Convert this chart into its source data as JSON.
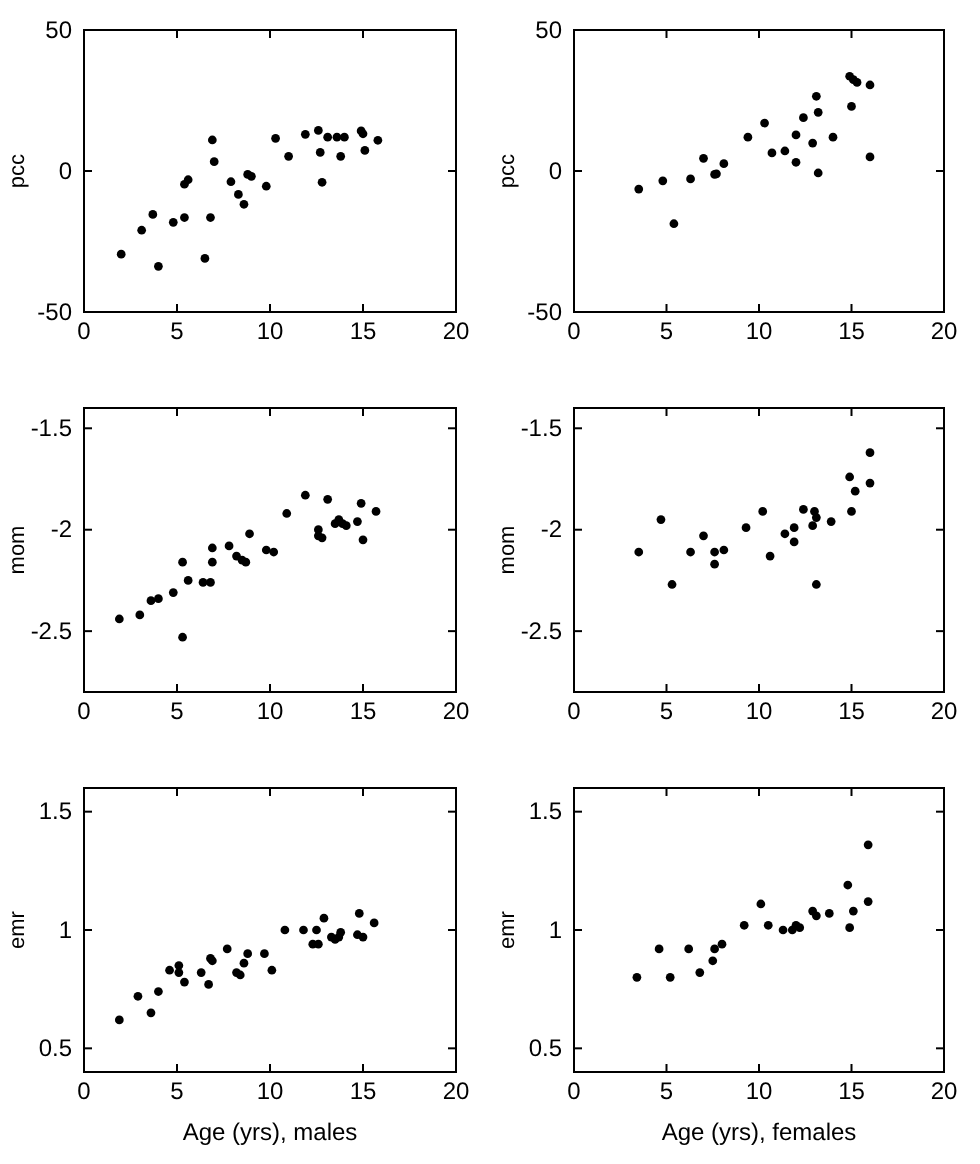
{
  "chart_data": [
    {
      "type": "scatter",
      "ylabel": "pcc",
      "xlim": [
        0,
        20
      ],
      "xticks": [
        0,
        5,
        10,
        15,
        20
      ],
      "ylim": [
        -50,
        50
      ],
      "yticks": [
        -50,
        0,
        50
      ],
      "marker": "circle",
      "color": "#000000",
      "x": [
        2.0,
        3.1,
        3.7,
        4.0,
        4.8,
        5.4,
        5.6,
        5.4,
        6.5,
        6.8,
        6.9,
        7.0,
        7.9,
        8.3,
        8.6,
        8.8,
        9.0,
        9.8,
        10.3,
        11.0,
        11.9,
        12.6,
        12.7,
        12.8,
        13.1,
        13.6,
        14.0,
        13.8,
        14.9,
        15.0,
        15.1,
        15.8
      ],
      "values": [
        -29.5,
        -21,
        -15.4,
        -33.8,
        -18.2,
        -4.7,
        -3.1,
        -16.5,
        -31,
        -16.5,
        11,
        3.3,
        -3.8,
        -8.3,
        -11.8,
        -1.2,
        -1.9,
        -5.4,
        11.6,
        5.2,
        13,
        14.4,
        6.6,
        -4,
        12,
        12,
        12,
        5.2,
        14.2,
        13.2,
        7.3,
        10.9
      ]
    },
    {
      "type": "scatter",
      "ylabel": "pcc",
      "xlim": [
        0,
        20
      ],
      "xticks": [
        0,
        5,
        10,
        15,
        20
      ],
      "ylim": [
        -50,
        50
      ],
      "yticks": [
        -50,
        0,
        50
      ],
      "marker": "circle",
      "color": "#000000",
      "x": [
        3.5,
        4.8,
        5.4,
        6.3,
        7.0,
        7.6,
        7.7,
        8.1,
        9.4,
        10.3,
        10.7,
        11.4,
        12.0,
        12.0,
        12.4,
        12.9,
        13.1,
        13.2,
        13.2,
        14.0,
        14.9,
        15.1,
        15.3,
        15.0,
        16.0,
        16.0
      ],
      "values": [
        -6.4,
        -3.5,
        -18.7,
        -2.8,
        4.5,
        -1.2,
        -1,
        2.6,
        12,
        17,
        6.4,
        7.1,
        12.8,
        3.1,
        18.9,
        9.9,
        26.5,
        20.8,
        -0.7,
        12,
        33.6,
        32.4,
        31.4,
        22.9,
        30.5,
        5
      ]
    },
    {
      "type": "scatter",
      "ylabel": "mom",
      "xlim": [
        0,
        20
      ],
      "xticks": [
        0,
        5,
        10,
        15,
        20
      ],
      "ylim": [
        -2.8,
        -1.4
      ],
      "yticks": [
        -2.5,
        -2,
        -1.5
      ],
      "marker": "circle",
      "color": "#000000",
      "x": [
        1.9,
        3.0,
        3.6,
        4.0,
        4.8,
        5.3,
        5.3,
        5.6,
        6.4,
        6.8,
        6.9,
        6.9,
        7.8,
        8.2,
        8.5,
        8.7,
        8.9,
        9.8,
        10.2,
        10.9,
        11.9,
        12.6,
        12.6,
        12.8,
        13.1,
        13.5,
        13.7,
        13.9,
        14.1,
        14.9,
        14.7,
        15.0,
        15.7
      ],
      "values": [
        -2.44,
        -2.42,
        -2.35,
        -2.34,
        -2.31,
        -2.16,
        -2.53,
        -2.25,
        -2.26,
        -2.26,
        -2.09,
        -2.16,
        -2.08,
        -2.13,
        -2.15,
        -2.16,
        -2.02,
        -2.1,
        -2.11,
        -1.92,
        -1.83,
        -2,
        -2.03,
        -2.04,
        -1.85,
        -1.97,
        -1.95,
        -1.97,
        -1.98,
        -1.87,
        -1.96,
        -2.05,
        -1.91
      ]
    },
    {
      "type": "scatter",
      "ylabel": "mom",
      "xlim": [
        0,
        20
      ],
      "xticks": [
        0,
        5,
        10,
        15,
        20
      ],
      "ylim": [
        -2.8,
        -1.4
      ],
      "yticks": [
        -2.5,
        -2,
        -1.5
      ],
      "marker": "circle",
      "color": "#000000",
      "x": [
        3.5,
        4.7,
        5.3,
        6.3,
        7.0,
        7.6,
        7.6,
        8.1,
        9.3,
        10.2,
        10.6,
        11.4,
        11.9,
        11.9,
        12.4,
        12.9,
        13.0,
        13.1,
        13.1,
        13.9,
        14.9,
        15.0,
        15.2,
        16.0,
        16.0
      ],
      "values": [
        -2.11,
        -1.95,
        -2.27,
        -2.11,
        -2.03,
        -2.11,
        -2.17,
        -2.1,
        -1.99,
        -1.91,
        -2.13,
        -2.02,
        -1.99,
        -2.06,
        -1.9,
        -1.98,
        -1.91,
        -1.94,
        -2.27,
        -1.96,
        -1.74,
        -1.91,
        -1.81,
        -1.62,
        -1.77
      ]
    },
    {
      "type": "scatter",
      "xlabel": "Age (yrs), males",
      "ylabel": "emr",
      "xlim": [
        0,
        20
      ],
      "xticks": [
        0,
        5,
        10,
        15,
        20
      ],
      "ylim": [
        0.4,
        1.6
      ],
      "yticks": [
        0.5,
        1,
        1.5
      ],
      "marker": "circle",
      "color": "#000000",
      "x": [
        1.9,
        2.9,
        3.6,
        4.0,
        4.6,
        5.1,
        5.1,
        5.4,
        6.3,
        6.7,
        6.8,
        6.9,
        7.7,
        8.2,
        8.4,
        8.6,
        8.8,
        9.7,
        10.1,
        10.8,
        11.8,
        12.3,
        12.5,
        12.6,
        12.9,
        13.3,
        13.5,
        13.7,
        13.8,
        14.8,
        14.7,
        15.0,
        15.6
      ],
      "values": [
        0.62,
        0.72,
        0.65,
        0.74,
        0.83,
        0.85,
        0.82,
        0.78,
        0.82,
        0.77,
        0.88,
        0.87,
        0.92,
        0.82,
        0.81,
        0.86,
        0.9,
        0.9,
        0.83,
        1,
        1,
        0.94,
        1,
        0.94,
        1.05,
        0.97,
        0.96,
        0.97,
        0.99,
        1.07,
        0.98,
        0.97,
        1.03
      ]
    },
    {
      "type": "scatter",
      "xlabel": "Age (yrs), females",
      "ylabel": "emr",
      "xlim": [
        0,
        20
      ],
      "xticks": [
        0,
        5,
        10,
        15,
        20
      ],
      "ylim": [
        0.4,
        1.6
      ],
      "yticks": [
        0.5,
        1,
        1.5
      ],
      "marker": "circle",
      "color": "#000000",
      "x": [
        3.4,
        4.6,
        5.2,
        6.2,
        6.8,
        7.5,
        7.6,
        8.0,
        9.2,
        10.1,
        10.5,
        11.3,
        11.8,
        12.0,
        12.2,
        12.9,
        13.1,
        13.8,
        14.8,
        14.9,
        15.1,
        15.9,
        15.9
      ],
      "values": [
        0.8,
        0.92,
        0.8,
        0.92,
        0.82,
        0.87,
        0.92,
        0.94,
        1.02,
        1.11,
        1.02,
        1,
        1,
        1.02,
        1.01,
        1.08,
        1.06,
        1.07,
        1.19,
        1.01,
        1.08,
        1.36,
        1.12
      ]
    }
  ]
}
